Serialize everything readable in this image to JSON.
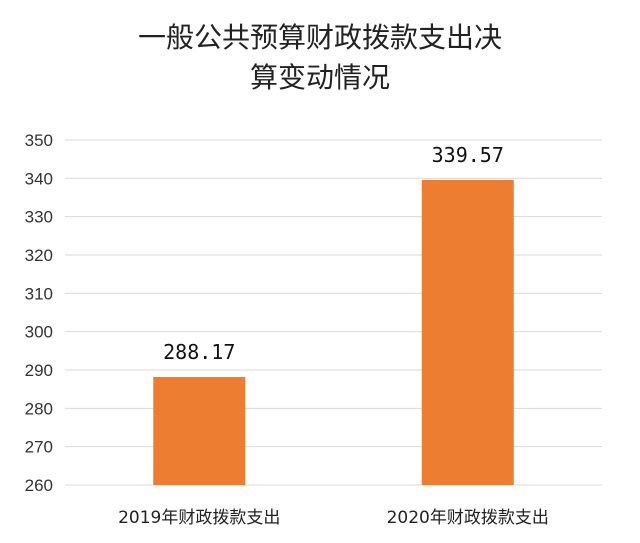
{
  "chart_data": {
    "type": "bar",
    "title_lines": [
      "一般公共预算财政拨款支出决",
      "算变动情况"
    ],
    "categories": [
      "2019年财政拨款支出",
      "2020年财政拨款支出"
    ],
    "values": [
      288.17,
      339.57
    ],
    "value_labels": [
      "288.17",
      "339.57"
    ],
    "ylim": [
      260,
      350
    ],
    "yticks": [
      260,
      270,
      280,
      290,
      300,
      310,
      320,
      330,
      340,
      350
    ],
    "grid": true,
    "legend": "none",
    "bar_color": "#ED7D31",
    "grid_color": "#D9D9D9"
  }
}
